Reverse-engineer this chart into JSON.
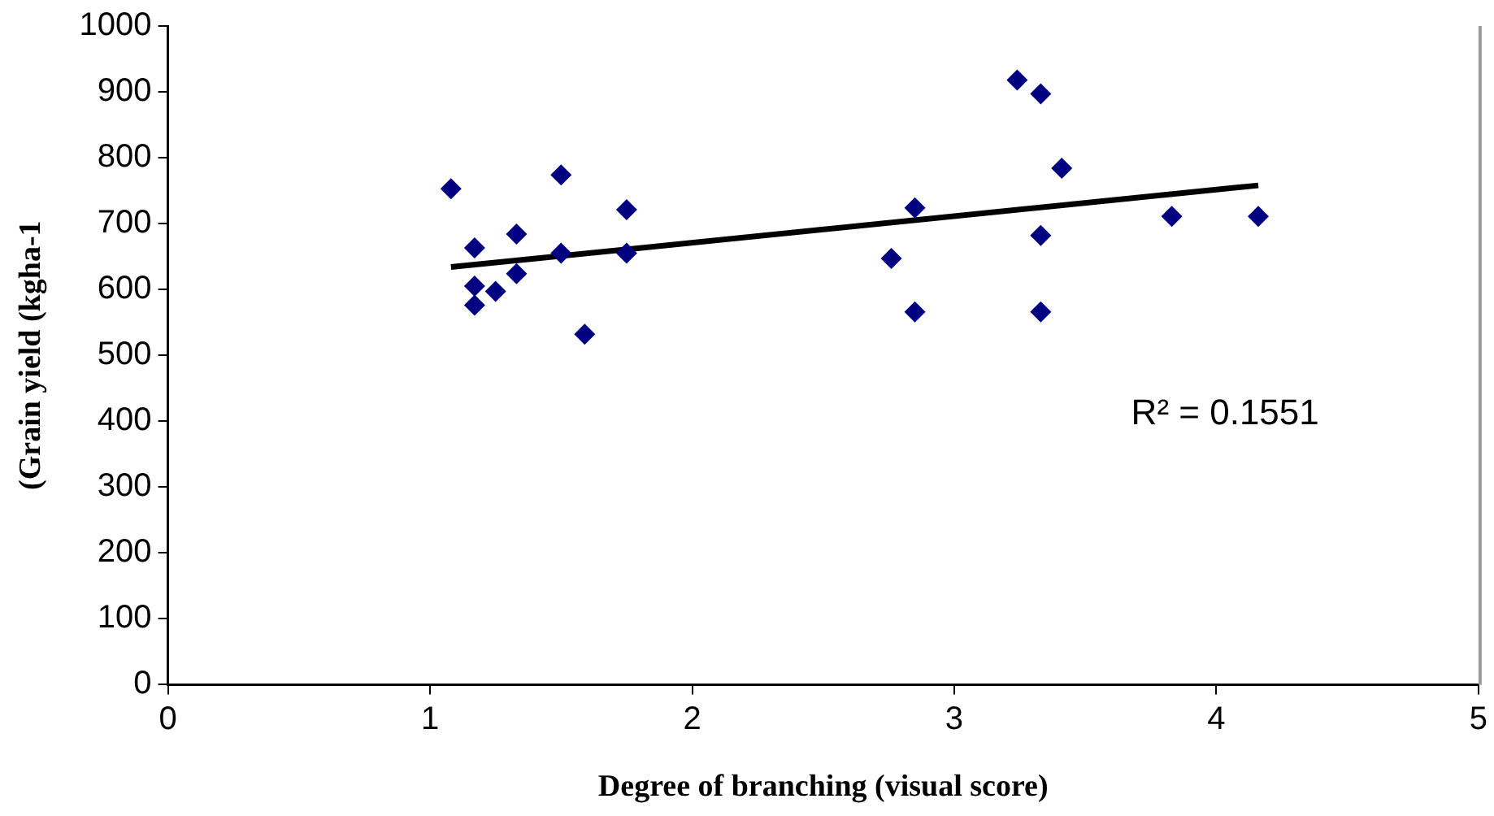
{
  "chart_data": {
    "type": "scatter",
    "xlabel": "Degree of branching (visual score)",
    "ylabel": "(Grain yield (kgha-1",
    "xlim": [
      0,
      5
    ],
    "xticks": [
      0,
      1,
      2,
      3,
      4,
      5
    ],
    "ylim": [
      0,
      1000
    ],
    "yticks": [
      0,
      100,
      200,
      300,
      400,
      500,
      600,
      700,
      800,
      900,
      1000
    ],
    "grid": false,
    "legend": false,
    "marker": "diamond",
    "annotations": [
      "R² = 0.1551"
    ],
    "series": [
      {
        "color": "#000080",
        "x": [
          1.08,
          1.17,
          1.17,
          1.17,
          1.25,
          1.33,
          1.33,
          1.5,
          1.5,
          1.59,
          1.75,
          1.75,
          2.76,
          2.85,
          2.85,
          3.24,
          3.33,
          3.41,
          3.33,
          3.33,
          3.83,
          4.16
        ],
        "values": [
          753,
          663,
          605,
          576,
          597,
          684,
          624,
          774,
          655,
          532,
          721,
          655,
          647,
          724,
          566,
          918,
          897,
          784,
          682,
          566,
          711,
          711
        ]
      },
      {
        "type": "line",
        "color": "#000000",
        "marker": "none",
        "line_style": "solid",
        "x": [
          1.08,
          4.16
        ],
        "values": [
          634,
          758
        ]
      }
    ]
  }
}
